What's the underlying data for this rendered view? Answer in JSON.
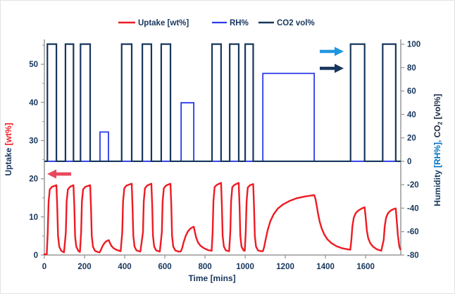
{
  "chart_data": {
    "type": "line",
    "title": "",
    "xlabel": "Time [mins]",
    "x_ticks": [
      0,
      200,
      400,
      600,
      800,
      1000,
      1200,
      1400,
      1600
    ],
    "xlim": [
      0,
      1775
    ],
    "grid": false,
    "legend_position": "top",
    "left_axis": {
      "label": "Uptake [wt%]",
      "label_parts": {
        "name": "Uptake ",
        "unit": "[wt%]"
      },
      "name_color": "#17365d",
      "unit_color": "#ee1b23",
      "ticks": [
        0,
        10,
        20,
        30,
        40,
        50
      ],
      "minor_ticks": [
        5,
        15,
        25,
        35,
        45,
        55
      ],
      "lim": [
        0,
        56.5
      ]
    },
    "right_axis": {
      "label": "Humidity [RH%],  CO2 [vol%]",
      "label_parts": {
        "p1": "Humidity ",
        "p2": "[RH%], ",
        "p3": " CO",
        "p3sub": "2",
        "p4": " [vol%]"
      },
      "p1_color": "#17365d",
      "p2_color": "#0070c0",
      "p34_color": "#1c2b45",
      "ticks": [
        100,
        80,
        60,
        40,
        20,
        0,
        -20,
        -40,
        -60,
        -80
      ],
      "lim": [
        -80,
        104
      ]
    },
    "legend": [
      {
        "label": "Uptake [wt%]",
        "color": "#ee1b23"
      },
      {
        "label": "RH%",
        "color": "#2b3be8"
      },
      {
        "label": "CO2 vol%",
        "color": "#17365d"
      }
    ],
    "axis_line_color": "#999999",
    "series": {
      "co2": {
        "name": "CO2 vol%",
        "color": "#17365d",
        "width": 2.2,
        "baseline": 0,
        "unit": "vol%",
        "pulses": [
          {
            "start": 15,
            "end": 60,
            "level": 100
          },
          {
            "start": 105,
            "end": 145,
            "level": 100
          },
          {
            "start": 180,
            "end": 228,
            "level": 100
          },
          {
            "start": 385,
            "end": 435,
            "level": 100
          },
          {
            "start": 488,
            "end": 533,
            "level": 100
          },
          {
            "start": 582,
            "end": 628,
            "level": 100
          },
          {
            "start": 835,
            "end": 880,
            "level": 100
          },
          {
            "start": 923,
            "end": 968,
            "level": 100
          },
          {
            "start": 1000,
            "end": 1040,
            "level": 100
          },
          {
            "start": 1525,
            "end": 1595,
            "level": 100
          },
          {
            "start": 1685,
            "end": 1750,
            "level": 100
          }
        ]
      },
      "rh": {
        "name": "RH%",
        "color": "#2b3be8",
        "width": 1.8,
        "baseline": 0,
        "unit": "RH%",
        "pulses": [
          {
            "start": 277,
            "end": 319,
            "level": 25
          },
          {
            "start": 681,
            "end": 744,
            "level": 50
          },
          {
            "start": 1088,
            "end": 1344,
            "level": 75
          }
        ]
      },
      "uptake": {
        "name": "Uptake [wt%]",
        "color": "#ee1b23",
        "width": 2.4,
        "unit": "wt%",
        "points": [
          [
            0,
            0.2
          ],
          [
            12,
            0.2
          ],
          [
            17,
            6
          ],
          [
            21,
            14
          ],
          [
            27,
            17.2
          ],
          [
            38,
            17.9
          ],
          [
            60,
            18.3
          ],
          [
            64,
            13
          ],
          [
            68,
            5
          ],
          [
            74,
            2.2
          ],
          [
            84,
            1.1
          ],
          [
            98,
            0.7
          ],
          [
            107,
            6
          ],
          [
            111,
            14
          ],
          [
            117,
            17.2
          ],
          [
            128,
            17.9
          ],
          [
            145,
            18.3
          ],
          [
            149,
            13
          ],
          [
            153,
            5
          ],
          [
            159,
            2.2
          ],
          [
            169,
            1.1
          ],
          [
            177,
            0.8
          ],
          [
            183,
            6
          ],
          [
            187,
            14
          ],
          [
            193,
            17.2
          ],
          [
            204,
            17.9
          ],
          [
            228,
            18.3
          ],
          [
            232,
            13
          ],
          [
            236,
            5
          ],
          [
            242,
            2.2
          ],
          [
            252,
            1.1
          ],
          [
            266,
            0.8
          ],
          [
            275,
            0.7
          ],
          [
            282,
            1.4
          ],
          [
            290,
            2.4
          ],
          [
            299,
            3.1
          ],
          [
            308,
            3.6
          ],
          [
            316,
            3.8
          ],
          [
            321,
            3.9
          ],
          [
            327,
            3.1
          ],
          [
            335,
            2.3
          ],
          [
            347,
            1.7
          ],
          [
            362,
            1.3
          ],
          [
            380,
            1.0
          ],
          [
            388,
            6
          ],
          [
            392,
            14
          ],
          [
            398,
            17.5
          ],
          [
            409,
            18.2
          ],
          [
            435,
            18.7
          ],
          [
            439,
            13
          ],
          [
            443,
            5
          ],
          [
            449,
            2.2
          ],
          [
            459,
            1.2
          ],
          [
            478,
            0.9
          ],
          [
            491,
            6
          ],
          [
            495,
            14
          ],
          [
            501,
            17.5
          ],
          [
            512,
            18.2
          ],
          [
            533,
            18.7
          ],
          [
            537,
            13
          ],
          [
            541,
            5
          ],
          [
            547,
            2.2
          ],
          [
            557,
            1.2
          ],
          [
            575,
            0.9
          ],
          [
            585,
            6
          ],
          [
            589,
            14
          ],
          [
            595,
            17.5
          ],
          [
            606,
            18.2
          ],
          [
            628,
            18.7
          ],
          [
            632,
            13
          ],
          [
            636,
            5
          ],
          [
            642,
            2.2
          ],
          [
            652,
            1.2
          ],
          [
            668,
            0.9
          ],
          [
            679,
            0.9
          ],
          [
            686,
            1.8
          ],
          [
            694,
            3.4
          ],
          [
            704,
            5.0
          ],
          [
            715,
            6.2
          ],
          [
            727,
            6.9
          ],
          [
            738,
            7.3
          ],
          [
            744,
            7.4
          ],
          [
            749,
            6.2
          ],
          [
            756,
            4.6
          ],
          [
            765,
            3.3
          ],
          [
            778,
            2.4
          ],
          [
            795,
            1.8
          ],
          [
            815,
            1.3
          ],
          [
            833,
            1.1
          ],
          [
            838,
            6
          ],
          [
            842,
            14
          ],
          [
            848,
            17.8
          ],
          [
            859,
            18.4
          ],
          [
            880,
            18.9
          ],
          [
            884,
            13
          ],
          [
            888,
            5
          ],
          [
            894,
            2.2
          ],
          [
            904,
            1.2
          ],
          [
            920,
            1.0
          ],
          [
            926,
            6
          ],
          [
            930,
            14
          ],
          [
            936,
            17.8
          ],
          [
            947,
            18.4
          ],
          [
            968,
            18.9
          ],
          [
            972,
            13
          ],
          [
            976,
            5
          ],
          [
            982,
            2.2
          ],
          [
            992,
            1.2
          ],
          [
            998,
            1.1
          ],
          [
            1003,
            6
          ],
          [
            1007,
            14
          ],
          [
            1013,
            17.7
          ],
          [
            1024,
            18.3
          ],
          [
            1040,
            18.6
          ],
          [
            1044,
            13
          ],
          [
            1048,
            5
          ],
          [
            1054,
            2.2
          ],
          [
            1064,
            1.2
          ],
          [
            1080,
            1.0
          ],
          [
            1088,
            1.0
          ],
          [
            1094,
            2
          ],
          [
            1102,
            4
          ],
          [
            1112,
            6.5
          ],
          [
            1125,
            8.8
          ],
          [
            1142,
            10.7
          ],
          [
            1163,
            12.2
          ],
          [
            1190,
            13.3
          ],
          [
            1222,
            14.2
          ],
          [
            1258,
            14.9
          ],
          [
            1295,
            15.3
          ],
          [
            1330,
            15.6
          ],
          [
            1344,
            15.7
          ],
          [
            1350,
            14.8
          ],
          [
            1356,
            13.0
          ],
          [
            1363,
            10.8
          ],
          [
            1371,
            8.8
          ],
          [
            1381,
            7.0
          ],
          [
            1394,
            5.4
          ],
          [
            1410,
            4.1
          ],
          [
            1430,
            3.1
          ],
          [
            1455,
            2.3
          ],
          [
            1482,
            1.8
          ],
          [
            1510,
            1.5
          ],
          [
            1524,
            1.4
          ],
          [
            1529,
            4
          ],
          [
            1534,
            7.5
          ],
          [
            1541,
            9.8
          ],
          [
            1551,
            11.0
          ],
          [
            1565,
            11.7
          ],
          [
            1581,
            12.2
          ],
          [
            1595,
            12.5
          ],
          [
            1600,
            10
          ],
          [
            1606,
            6.5
          ],
          [
            1613,
            4.4
          ],
          [
            1623,
            3.1
          ],
          [
            1637,
            2.2
          ],
          [
            1656,
            1.5
          ],
          [
            1678,
            1.1
          ],
          [
            1690,
            4
          ],
          [
            1695,
            7.5
          ],
          [
            1702,
            9.8
          ],
          [
            1712,
            11.0
          ],
          [
            1726,
            11.7
          ],
          [
            1742,
            12.1
          ],
          [
            1750,
            12.2
          ],
          [
            1755,
            9
          ],
          [
            1761,
            5
          ],
          [
            1768,
            2.2
          ],
          [
            1773,
            1.5
          ]
        ]
      }
    },
    "annotations": {
      "uptake_arrow": {
        "direction": "left",
        "color": "#e8495e",
        "points_to": "left axis"
      },
      "rh_arrow": {
        "direction": "right",
        "color": "#2196e0",
        "points_to": "right axis"
      },
      "co2_arrow": {
        "direction": "right",
        "color": "#17365d",
        "points_to": "right axis"
      }
    }
  }
}
